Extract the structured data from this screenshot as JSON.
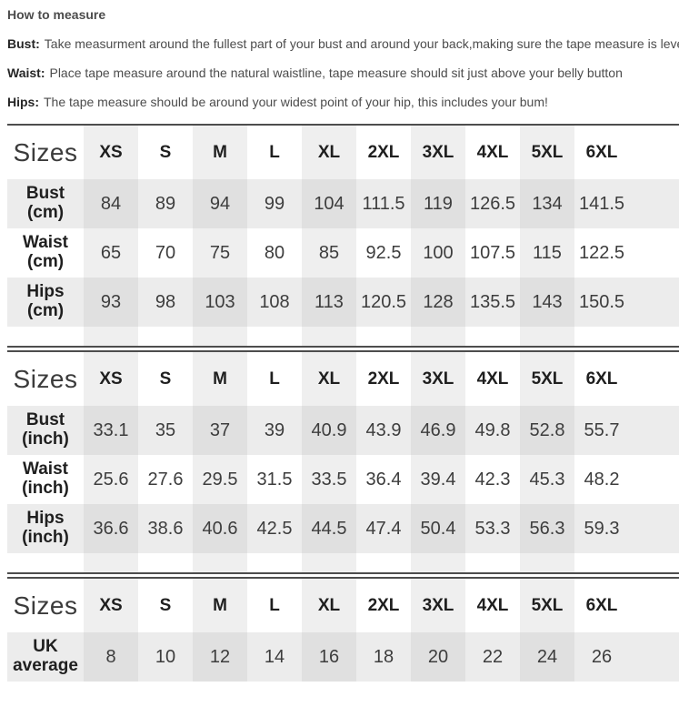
{
  "instructions": {
    "title": "How to measure",
    "items": [
      {
        "label": "Bust:",
        "text": "Take measurment around the fullest part of your bust and around your back,making sure the tape measure is level"
      },
      {
        "label": "Waist:",
        "text": "Place tape measure around the natural waistline, tape measure should sit just above your belly button"
      },
      {
        "label": "Hips:",
        "text": "The tape measure should be around your widest point of your hip, this includes your bum!"
      }
    ]
  },
  "size_tables": [
    {
      "unit": "cm",
      "columns": [
        "Sizes",
        "XS",
        "S",
        "M",
        "L",
        "XL",
        "2XL",
        "3XL",
        "4XL",
        "5XL",
        "6XL"
      ],
      "rows": [
        {
          "label": "Bust\n(cm)",
          "values": [
            84,
            89,
            94,
            99,
            104,
            111.5,
            119,
            126.5,
            134,
            141.5
          ]
        },
        {
          "label": "Waist\n(cm)",
          "values": [
            65,
            70,
            75,
            80,
            85,
            92.5,
            100,
            107.5,
            115,
            122.5
          ]
        },
        {
          "label": "Hips\n(cm)",
          "values": [
            93,
            98,
            103,
            108,
            113,
            120.5,
            128,
            135.5,
            143,
            150.5
          ]
        }
      ]
    },
    {
      "unit": "inch",
      "columns": [
        "Sizes",
        "XS",
        "S",
        "M",
        "L",
        "XL",
        "2XL",
        "3XL",
        "4XL",
        "5XL",
        "6XL"
      ],
      "rows": [
        {
          "label": "Bust\n(inch)",
          "values": [
            33.1,
            35,
            37,
            39,
            40.9,
            43.9,
            46.9,
            49.8,
            52.8,
            55.7
          ]
        },
        {
          "label": "Waist\n(inch)",
          "values": [
            25.6,
            27.6,
            29.5,
            31.5,
            33.5,
            36.4,
            39.4,
            42.3,
            45.3,
            48.2
          ]
        },
        {
          "label": "Hips\n(inch)",
          "values": [
            36.6,
            38.6,
            40.6,
            42.5,
            44.5,
            47.4,
            50.4,
            53.3,
            56.3,
            59.3
          ]
        }
      ]
    },
    {
      "unit": "uk",
      "columns": [
        "Sizes",
        "XS",
        "S",
        "M",
        "L",
        "XL",
        "2XL",
        "3XL",
        "4XL",
        "5XL",
        "6XL"
      ],
      "rows": [
        {
          "label": "UK\naverage",
          "values": [
            8,
            10,
            12,
            14,
            16,
            18,
            20,
            22,
            24,
            26
          ]
        }
      ]
    }
  ]
}
